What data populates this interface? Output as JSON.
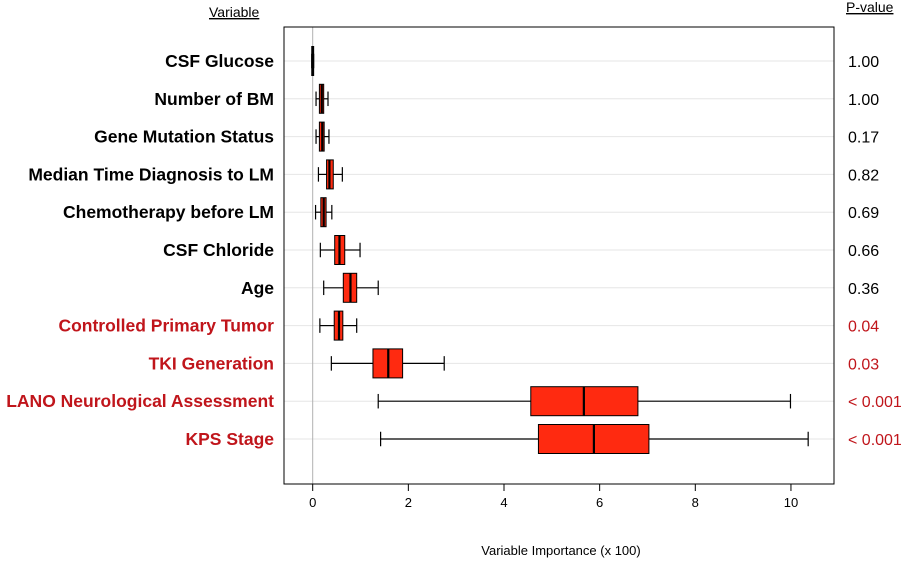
{
  "chart_data": {
    "type": "boxplot",
    "title": "",
    "xlabel": "Variable Importance (x 100)",
    "ylabel": "",
    "xlim": [
      -0.6,
      10.9
    ],
    "xticks": [
      0,
      2,
      4,
      6,
      8,
      10
    ],
    "grid": "horizontal",
    "headers": {
      "variable": "Variable",
      "pvalue": "P-value"
    },
    "colors": {
      "significant": "#c0151b",
      "normal": "#000000",
      "box": "#ff2a10",
      "median": "#000000",
      "reference": "#b0b0b0"
    },
    "variables": [
      {
        "name": "CSF Glucose",
        "p_value": "1.00",
        "significant": false,
        "whisker_low": -0.02,
        "q1": -0.02,
        "median": 0.0,
        "q3": 0.02,
        "whisker_high": 0.02
      },
      {
        "name": "Number of BM",
        "p_value": "1.00",
        "significant": false,
        "whisker_low": 0.07,
        "q1": 0.14,
        "median": 0.19,
        "q3": 0.23,
        "whisker_high": 0.32
      },
      {
        "name": "Gene Mutation Status",
        "p_value": "0.17",
        "significant": false,
        "whisker_low": 0.07,
        "q1": 0.14,
        "median": 0.2,
        "q3": 0.24,
        "whisker_high": 0.34
      },
      {
        "name": "Median Time Diagnosis to LM",
        "p_value": "0.82",
        "significant": false,
        "whisker_low": 0.12,
        "q1": 0.29,
        "median": 0.35,
        "q3": 0.43,
        "whisker_high": 0.62
      },
      {
        "name": "Chemotherapy before LM",
        "p_value": "0.69",
        "significant": false,
        "whisker_low": 0.06,
        "q1": 0.17,
        "median": 0.23,
        "q3": 0.28,
        "whisker_high": 0.4
      },
      {
        "name": "CSF Chloride",
        "p_value": "0.66",
        "significant": false,
        "whisker_low": 0.16,
        "q1": 0.46,
        "median": 0.56,
        "q3": 0.67,
        "whisker_high": 0.99
      },
      {
        "name": "Age",
        "p_value": "0.36",
        "significant": false,
        "whisker_low": 0.23,
        "q1": 0.64,
        "median": 0.79,
        "q3": 0.92,
        "whisker_high": 1.37
      },
      {
        "name": "Controlled Primary Tumor",
        "p_value": "0.04",
        "significant": true,
        "whisker_low": 0.15,
        "q1": 0.45,
        "median": 0.55,
        "q3": 0.63,
        "whisker_high": 0.92
      },
      {
        "name": "TKI Generation",
        "p_value": "0.03",
        "significant": true,
        "whisker_low": 0.39,
        "q1": 1.26,
        "median": 1.58,
        "q3": 1.88,
        "whisker_high": 2.75
      },
      {
        "name": "LANO Neurological Assessment",
        "p_value": "< 0.001",
        "significant": true,
        "whisker_low": 1.37,
        "q1": 4.56,
        "median": 5.67,
        "q3": 6.8,
        "whisker_high": 9.99
      },
      {
        "name": "KPS Stage",
        "p_value": "< 0.001",
        "significant": true,
        "whisker_low": 1.42,
        "q1": 4.72,
        "median": 5.88,
        "q3": 7.03,
        "whisker_high": 10.36
      }
    ]
  }
}
